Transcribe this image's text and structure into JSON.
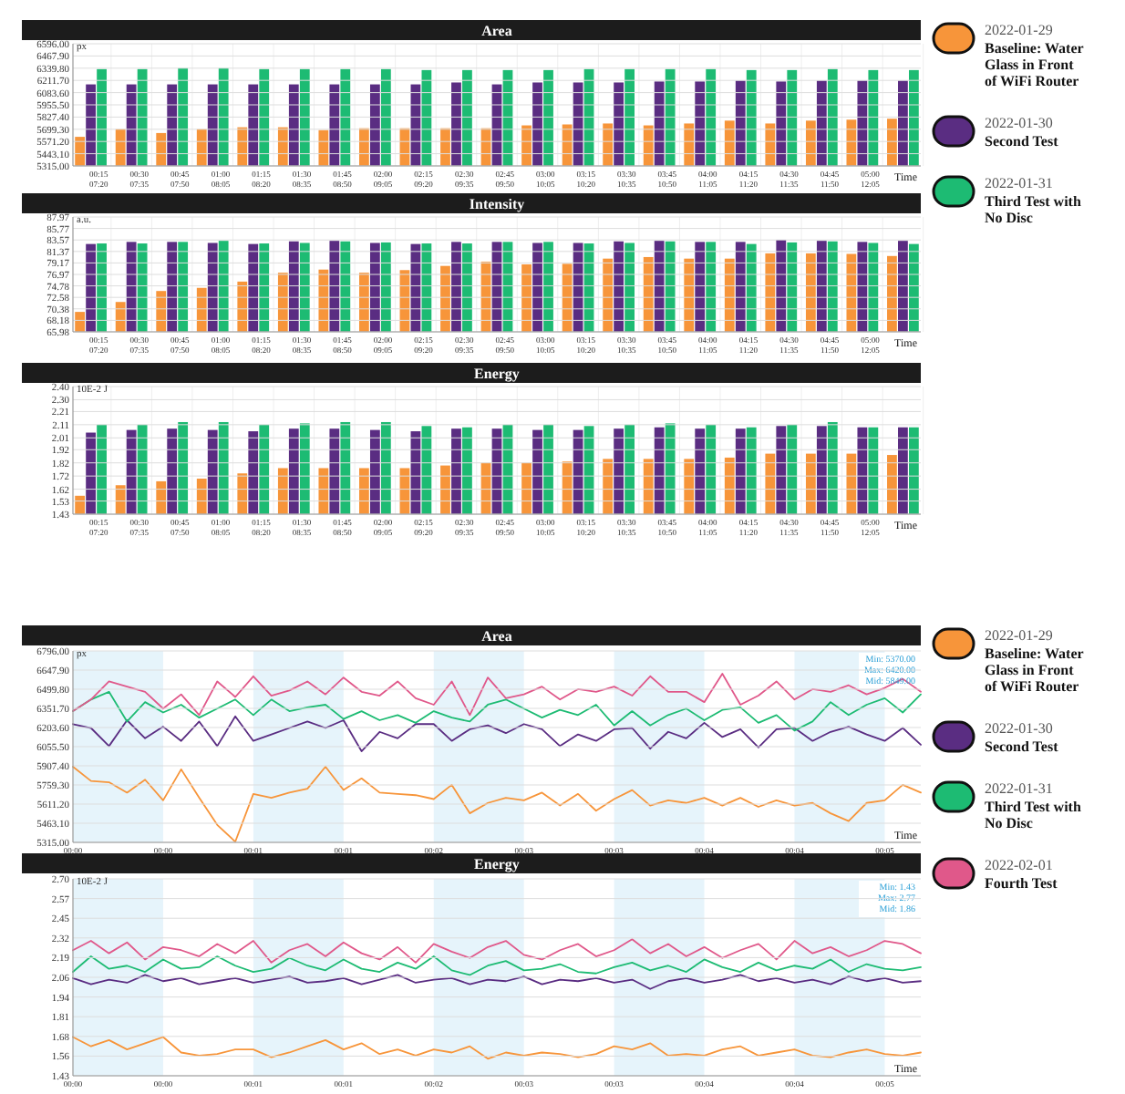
{
  "chart_data": [
    {
      "type": "bar",
      "title": "Area",
      "ylabel": "px",
      "xlabel": "Time",
      "categories": [
        "00:15\n07:20",
        "00:30\n07:35",
        "00:45\n07:50",
        "01:00\n08:05",
        "01:15\n08:20",
        "01:30\n08:35",
        "01:45\n08:50",
        "02:00\n09:05",
        "02:15\n09:20",
        "02:30\n09:35",
        "02:45\n09:50",
        "03:00\n10:05",
        "03:15\n10:20",
        "03:30\n10:35",
        "03:45\n10:50",
        "04:00\n11:05",
        "04:15\n11:20",
        "04:30\n11:35",
        "04:45\n11:50",
        "05:00\n12:05",
        null
      ],
      "ylim": [
        5315,
        6596
      ],
      "yticks": [
        {
          "value": 5315,
          "label": "5315.00"
        },
        {
          "value": 5443.1,
          "label": "5443.10"
        },
        {
          "value": 5571.2,
          "label": "5571.20"
        },
        {
          "value": 5699.3,
          "label": "5699.30"
        },
        {
          "value": 5827.4,
          "label": "5827.40"
        },
        {
          "value": 5955.5,
          "label": "5955.50"
        },
        {
          "value": 6083.6,
          "label": "6083.60"
        },
        {
          "value": 6211.7,
          "label": "6211.70"
        },
        {
          "value": 6339.8,
          "label": "6339.80"
        },
        {
          "value": 6467.9,
          "label": "6467.90"
        },
        {
          "value": 6596,
          "label": "6596.00"
        }
      ],
      "grid": true,
      "legend": "right",
      "series": [
        {
          "name": "2022-01-29 Baseline: Water Glass in Front of WiFi Router",
          "color": "#f7953a",
          "values": [
            5620,
            5700,
            5660,
            5700,
            5720,
            5720,
            5690,
            5710,
            5710,
            5710,
            5710,
            5740,
            5750,
            5760,
            5740,
            5760,
            5790,
            5760,
            5790,
            5800,
            5810
          ]
        },
        {
          "name": "2022-01-30 Second Test",
          "color": "#5a2d82",
          "values": [
            6170,
            6170,
            6170,
            6170,
            6170,
            6170,
            6170,
            6170,
            6170,
            6190,
            6170,
            6190,
            6190,
            6190,
            6200,
            6200,
            6210,
            6200,
            6210,
            6210,
            6210
          ]
        },
        {
          "name": "2022-01-31 Third Test with No Disc",
          "color": "#1dbb73",
          "values": [
            6330,
            6330,
            6340,
            6340,
            6330,
            6330,
            6330,
            6330,
            6320,
            6320,
            6320,
            6320,
            6330,
            6330,
            6330,
            6330,
            6320,
            6320,
            6330,
            6320,
            6320
          ]
        }
      ]
    },
    {
      "type": "bar",
      "title": "Intensity",
      "ylabel": "a.u.",
      "xlabel": "Time",
      "categories": [
        "00:15\n07:20",
        "00:30\n07:35",
        "00:45\n07:50",
        "01:00\n08:05",
        "01:15\n08:20",
        "01:30\n08:35",
        "01:45\n08:50",
        "02:00\n09:05",
        "02:15\n09:20",
        "02:30\n09:35",
        "02:45\n09:50",
        "03:00\n10:05",
        "03:15\n10:20",
        "03:30\n10:35",
        "03:45\n10:50",
        "04:00\n11:05",
        "04:15\n11:20",
        "04:30\n11:35",
        "04:45\n11:50",
        "05:00\n12:05",
        null
      ],
      "ylim": [
        65.98,
        87.97
      ],
      "yticks": [
        {
          "value": 65.98,
          "label": "65.98"
        },
        {
          "value": 68.18,
          "label": "68.18"
        },
        {
          "value": 70.38,
          "label": "70.38"
        },
        {
          "value": 72.58,
          "label": "72.58"
        },
        {
          "value": 74.78,
          "label": "74.78"
        },
        {
          "value": 76.97,
          "label": "76.97"
        },
        {
          "value": 79.17,
          "label": "79.17"
        },
        {
          "value": 81.37,
          "label": "81.37"
        },
        {
          "value": 83.57,
          "label": "83.57"
        },
        {
          "value": 85.77,
          "label": "85.77"
        },
        {
          "value": 87.97,
          "label": "87.97"
        }
      ],
      "grid": true,
      "series": [
        {
          "color": "#f7953a",
          "values": [
            69.8,
            71.7,
            73.8,
            74.4,
            75.6,
            77.3,
            77.9,
            77.3,
            77.8,
            78.6,
            79.4,
            78.9,
            79.0,
            80.0,
            80.3,
            80.0,
            80.0,
            81.0,
            81.0,
            80.9,
            80.5
          ]
        },
        {
          "color": "#5a2d82",
          "values": [
            82.8,
            83.2,
            83.2,
            83.0,
            82.8,
            83.3,
            83.4,
            83.0,
            82.8,
            83.2,
            83.2,
            83.0,
            83.0,
            83.3,
            83.4,
            83.2,
            83.2,
            83.6,
            83.4,
            83.2,
            83.4
          ]
        },
        {
          "color": "#1dbb73",
          "values": [
            82.9,
            82.9,
            83.2,
            83.4,
            82.9,
            83.0,
            83.3,
            83.1,
            82.9,
            82.9,
            83.2,
            83.2,
            82.9,
            83.0,
            83.3,
            83.2,
            82.8,
            83.1,
            83.3,
            83.0,
            82.8
          ]
        }
      ]
    },
    {
      "type": "bar",
      "title": "Energy",
      "ylabel": "10E-2 J",
      "xlabel": "Time",
      "categories": [
        "00:15\n07:20",
        "00:30\n07:35",
        "00:45\n07:50",
        "01:00\n08:05",
        "01:15\n08:20",
        "01:30\n08:35",
        "01:45\n08:50",
        "02:00\n09:05",
        "02:15\n09:20",
        "02:30\n09:35",
        "02:45\n09:50",
        "03:00\n10:05",
        "03:15\n10:20",
        "03:30\n10:35",
        "03:45\n10:50",
        "04:00\n11:05",
        "04:15\n11:20",
        "04:30\n11:35",
        "04:45\n11:50",
        "05:00\n12:05",
        null
      ],
      "ylim": [
        1.43,
        2.4
      ],
      "yticks": [
        {
          "value": 1.43,
          "label": "1.43"
        },
        {
          "value": 1.53,
          "label": "1.53"
        },
        {
          "value": 1.62,
          "label": "1.62"
        },
        {
          "value": 1.72,
          "label": "1.72"
        },
        {
          "value": 1.82,
          "label": "1.82"
        },
        {
          "value": 1.92,
          "label": "1.92"
        },
        {
          "value": 2.01,
          "label": "2.01"
        },
        {
          "value": 2.11,
          "label": "2.11"
        },
        {
          "value": 2.21,
          "label": "2.21"
        },
        {
          "value": 2.3,
          "label": "2.30"
        },
        {
          "value": 2.4,
          "label": "2.40"
        }
      ],
      "grid": true,
      "series": [
        {
          "color": "#f7953a",
          "values": [
            1.57,
            1.65,
            1.68,
            1.7,
            1.74,
            1.78,
            1.78,
            1.78,
            1.78,
            1.8,
            1.82,
            1.82,
            1.83,
            1.85,
            1.85,
            1.85,
            1.86,
            1.89,
            1.89,
            1.89,
            1.88
          ]
        },
        {
          "color": "#5a2d82",
          "values": [
            2.05,
            2.07,
            2.08,
            2.07,
            2.06,
            2.08,
            2.08,
            2.07,
            2.06,
            2.08,
            2.08,
            2.07,
            2.07,
            2.08,
            2.09,
            2.08,
            2.08,
            2.1,
            2.1,
            2.09,
            2.09
          ]
        },
        {
          "color": "#1dbb73",
          "values": [
            2.11,
            2.11,
            2.13,
            2.13,
            2.11,
            2.12,
            2.13,
            2.13,
            2.1,
            2.09,
            2.11,
            2.11,
            2.1,
            2.11,
            2.12,
            2.11,
            2.09,
            2.11,
            2.13,
            2.09,
            2.09
          ]
        }
      ]
    },
    {
      "type": "line",
      "title": "Area",
      "ylabel": "px",
      "xlabel": "Time",
      "categories": [
        "00:00",
        null,
        null,
        null,
        null,
        "00:00",
        null,
        null,
        null,
        null,
        "00:01",
        null,
        null,
        null,
        null,
        "00:01",
        null,
        null,
        null,
        null,
        "00:02",
        null,
        null,
        null,
        null,
        "00:03",
        null,
        null,
        null,
        null,
        "00:03",
        null,
        null,
        null,
        null,
        "00:04",
        null,
        null,
        null,
        null,
        "00:04",
        null,
        null,
        null,
        null,
        "00:05",
        null,
        null
      ],
      "ylim": [
        5315,
        6796
      ],
      "yticks": [
        {
          "value": 5315,
          "label": "5315.00"
        },
        {
          "value": 5463.1,
          "label": "5463.10"
        },
        {
          "value": 5611.2,
          "label": "5611.20"
        },
        {
          "value": 5759.3,
          "label": "5759.30"
        },
        {
          "value": 5907.4,
          "label": "5907.40"
        },
        {
          "value": 6055.5,
          "label": "6055.50"
        },
        {
          "value": 6203.6,
          "label": "6203.60"
        },
        {
          "value": 6351.7,
          "label": "6351.70"
        },
        {
          "value": 6499.8,
          "label": "6499.80"
        },
        {
          "value": 6647.9,
          "label": "6647.90"
        },
        {
          "value": 6796,
          "label": "6796.00"
        }
      ],
      "grid": true,
      "legend": "right",
      "line_style": "solid",
      "marker": "none",
      "annotations": [
        "Min: 5370.00",
        "Max: 6420.00",
        "Mid: 5849.00"
      ],
      "series": [
        {
          "name": "2022-01-29 Baseline: Water Glass in Front of WiFi Router",
          "color": "#f7953a",
          "values": [
            5900,
            5790,
            5780,
            5700,
            5800,
            5640,
            5880,
            5660,
            5450,
            5320,
            5690,
            5660,
            5700,
            5730,
            5900,
            5720,
            5810,
            5700,
            5690,
            5680,
            5650,
            5760,
            5540,
            5620,
            5660,
            5640,
            5700,
            5600,
            5690,
            5560,
            5650,
            5720,
            5600,
            5640,
            5620,
            5660,
            5600,
            5660,
            5590,
            5640,
            5600,
            5620,
            5540,
            5480,
            5620,
            5640,
            5760,
            5700
          ]
        },
        {
          "name": "2022-01-30 Second Test",
          "color": "#5a2d82",
          "values": [
            6230,
            6200,
            6060,
            6260,
            6120,
            6210,
            6100,
            6250,
            6060,
            6290,
            6100,
            6150,
            6200,
            6250,
            6200,
            6260,
            6020,
            6170,
            6120,
            6230,
            6230,
            6100,
            6190,
            6220,
            6160,
            6230,
            6190,
            6060,
            6150,
            6100,
            6190,
            6200,
            6040,
            6170,
            6120,
            6240,
            6130,
            6190,
            6050,
            6190,
            6200,
            6100,
            6170,
            6210,
            6150,
            6100,
            6200,
            6070
          ]
        },
        {
          "name": "2022-01-31 Third Test with No Disc",
          "color": "#1dbb73",
          "values": [
            6330,
            6420,
            6480,
            6250,
            6400,
            6320,
            6380,
            6280,
            6350,
            6420,
            6300,
            6420,
            6330,
            6360,
            6380,
            6270,
            6330,
            6260,
            6300,
            6240,
            6330,
            6280,
            6250,
            6380,
            6420,
            6350,
            6280,
            6340,
            6300,
            6380,
            6220,
            6330,
            6220,
            6300,
            6350,
            6260,
            6340,
            6360,
            6240,
            6300,
            6180,
            6250,
            6400,
            6300,
            6380,
            6430,
            6320,
            6460
          ]
        },
        {
          "name": "2022-02-01 Fourth Test",
          "color": "#e0588a",
          "values": [
            6330,
            6420,
            6560,
            6520,
            6480,
            6350,
            6460,
            6300,
            6560,
            6440,
            6600,
            6450,
            6490,
            6560,
            6460,
            6590,
            6480,
            6450,
            6560,
            6430,
            6380,
            6560,
            6300,
            6590,
            6430,
            6460,
            6520,
            6420,
            6500,
            6480,
            6520,
            6450,
            6600,
            6480,
            6480,
            6400,
            6620,
            6380,
            6450,
            6560,
            6420,
            6500,
            6480,
            6530,
            6460,
            6510,
            6580,
            6480
          ]
        }
      ]
    },
    {
      "type": "line",
      "title": "Energy",
      "ylabel": "10E-2 J",
      "xlabel": "Time",
      "categories": [
        "00:00",
        null,
        null,
        null,
        null,
        "00:00",
        null,
        null,
        null,
        null,
        "00:01",
        null,
        null,
        null,
        null,
        "00:01",
        null,
        null,
        null,
        null,
        "00:02",
        null,
        null,
        null,
        null,
        "00:03",
        null,
        null,
        null,
        null,
        "00:03",
        null,
        null,
        null,
        null,
        "00:04",
        null,
        null,
        null,
        null,
        "00:04",
        null,
        null,
        null,
        null,
        "00:05",
        null,
        null
      ],
      "ylim": [
        1.43,
        2.7
      ],
      "yticks": [
        {
          "value": 1.43,
          "label": "1.43"
        },
        {
          "value": 1.557,
          "label": "1.56"
        },
        {
          "value": 1.684,
          "label": "1.68"
        },
        {
          "value": 1.811,
          "label": "1.81"
        },
        {
          "value": 1.938,
          "label": "1.94"
        },
        {
          "value": 2.065,
          "label": "2.06"
        },
        {
          "value": 2.192,
          "label": "2.19"
        },
        {
          "value": 2.319,
          "label": "2.32"
        },
        {
          "value": 2.446,
          "label": "2.45"
        },
        {
          "value": 2.573,
          "label": "2.57"
        },
        {
          "value": 2.7,
          "label": "2.70"
        }
      ],
      "grid": true,
      "line_style": "solid",
      "marker": "none",
      "annotations": [
        "Min: 1.43",
        "Max: 2.77",
        "Mid: 1.86"
      ],
      "series": [
        {
          "color": "#f7953a",
          "values": [
            1.68,
            1.62,
            1.66,
            1.6,
            1.64,
            1.68,
            1.58,
            1.56,
            1.57,
            1.6,
            1.6,
            1.55,
            1.58,
            1.62,
            1.66,
            1.6,
            1.64,
            1.57,
            1.6,
            1.56,
            1.6,
            1.58,
            1.62,
            1.54,
            1.58,
            1.56,
            1.58,
            1.57,
            1.55,
            1.57,
            1.62,
            1.6,
            1.64,
            1.56,
            1.57,
            1.56,
            1.6,
            1.62,
            1.56,
            1.58,
            1.6,
            1.56,
            1.55,
            1.58,
            1.6,
            1.57,
            1.56,
            1.58
          ]
        },
        {
          "color": "#5a2d82",
          "values": [
            2.06,
            2.02,
            2.05,
            2.03,
            2.08,
            2.04,
            2.06,
            2.02,
            2.04,
            2.06,
            2.03,
            2.05,
            2.07,
            2.03,
            2.04,
            2.06,
            2.02,
            2.05,
            2.08,
            2.03,
            2.05,
            2.06,
            2.02,
            2.05,
            2.04,
            2.07,
            2.02,
            2.05,
            2.04,
            2.06,
            2.03,
            2.05,
            1.99,
            2.04,
            2.06,
            2.03,
            2.05,
            2.08,
            2.04,
            2.06,
            2.03,
            2.05,
            2.02,
            2.07,
            2.04,
            2.06,
            2.03,
            2.04
          ]
        },
        {
          "color": "#1dbb73",
          "values": [
            2.1,
            2.2,
            2.12,
            2.14,
            2.1,
            2.18,
            2.12,
            2.13,
            2.2,
            2.14,
            2.1,
            2.12,
            2.19,
            2.14,
            2.11,
            2.18,
            2.12,
            2.1,
            2.16,
            2.12,
            2.2,
            2.11,
            2.08,
            2.14,
            2.17,
            2.11,
            2.12,
            2.15,
            2.1,
            2.09,
            2.13,
            2.16,
            2.11,
            2.14,
            2.1,
            2.18,
            2.13,
            2.1,
            2.16,
            2.11,
            2.14,
            2.12,
            2.18,
            2.1,
            2.15,
            2.12,
            2.11,
            2.13
          ]
        },
        {
          "color": "#e0588a",
          "values": [
            2.24,
            2.3,
            2.22,
            2.29,
            2.18,
            2.26,
            2.24,
            2.2,
            2.28,
            2.22,
            2.3,
            2.16,
            2.24,
            2.28,
            2.2,
            2.29,
            2.22,
            2.18,
            2.26,
            2.16,
            2.28,
            2.23,
            2.19,
            2.26,
            2.3,
            2.21,
            2.18,
            2.24,
            2.28,
            2.2,
            2.24,
            2.31,
            2.22,
            2.28,
            2.2,
            2.26,
            2.19,
            2.24,
            2.28,
            2.18,
            2.3,
            2.22,
            2.26,
            2.2,
            2.24,
            2.3,
            2.28,
            2.22
          ]
        }
      ]
    }
  ]
}
